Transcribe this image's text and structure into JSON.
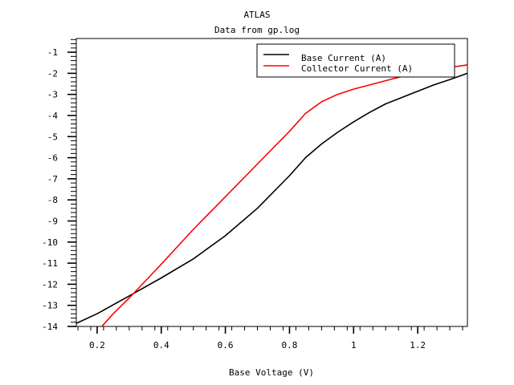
{
  "chart_data": {
    "type": "line",
    "title": "ATLAS",
    "subtitle": "Data from gp.log",
    "xlabel": "Base Voltage (V)",
    "ylabel": "",
    "xlim": [
      0.135,
      1.355
    ],
    "ylim": [
      -14,
      -0.35
    ],
    "x_ticks": [
      {
        "value": 0.2,
        "label": "0.2"
      },
      {
        "value": 0.4,
        "label": "0.4"
      },
      {
        "value": 0.6,
        "label": "0.6"
      },
      {
        "value": 0.8,
        "label": "0.8"
      },
      {
        "value": 1.0,
        "label": "1"
      },
      {
        "value": 1.2,
        "label": "1.2"
      }
    ],
    "y_ticks": [
      {
        "value": -1,
        "label": "-1"
      },
      {
        "value": -2,
        "label": "-2"
      },
      {
        "value": -3,
        "label": "-3"
      },
      {
        "value": -4,
        "label": "-4"
      },
      {
        "value": -5,
        "label": "-5"
      },
      {
        "value": -6,
        "label": "-6"
      },
      {
        "value": -7,
        "label": "-7"
      },
      {
        "value": -8,
        "label": "-8"
      },
      {
        "value": -9,
        "label": "-9"
      },
      {
        "value": -10,
        "label": "-10"
      },
      {
        "value": -11,
        "label": "-11"
      },
      {
        "value": -12,
        "label": "-12"
      },
      {
        "value": -13,
        "label": "-13"
      },
      {
        "value": -14,
        "label": "-14"
      }
    ],
    "grid": false,
    "legend_position": "top-right",
    "series": [
      {
        "name": "Base Current (A)",
        "color": "#000000",
        "x": [
          0.135,
          0.2,
          0.3,
          0.4,
          0.5,
          0.6,
          0.7,
          0.8,
          0.85,
          0.9,
          0.95,
          1.0,
          1.05,
          1.1,
          1.15,
          1.2,
          1.25,
          1.3,
          1.355
        ],
        "y": [
          -13.85,
          -13.4,
          -12.55,
          -11.7,
          -10.8,
          -9.7,
          -8.4,
          -6.85,
          -6.0,
          -5.35,
          -4.8,
          -4.3,
          -3.85,
          -3.45,
          -3.15,
          -2.85,
          -2.55,
          -2.3,
          -2.0
        ]
      },
      {
        "name": "Collector Current (A)",
        "color": "#ff0000",
        "x": [
          0.215,
          0.25,
          0.3,
          0.35,
          0.4,
          0.5,
          0.6,
          0.7,
          0.8,
          0.85,
          0.9,
          0.95,
          1.0,
          1.05,
          1.1,
          1.15,
          1.2,
          1.25,
          1.3,
          1.355
        ],
        "y": [
          -14.0,
          -13.4,
          -12.65,
          -11.85,
          -11.05,
          -9.4,
          -7.85,
          -6.3,
          -4.75,
          -3.9,
          -3.35,
          -3.0,
          -2.75,
          -2.55,
          -2.35,
          -2.15,
          -2.0,
          -1.85,
          -1.72,
          -1.6
        ]
      }
    ]
  }
}
